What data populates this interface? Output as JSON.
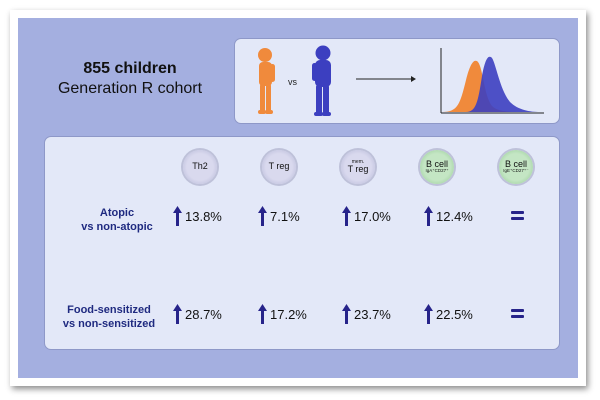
{
  "cohort": {
    "line1": "855 children",
    "line2": "Generation R cohort"
  },
  "illustration": {
    "vs_label": "vs",
    "colors": {
      "orange": "#f08a3c",
      "blue": "#3c3fc0",
      "panel": "#a4afe0",
      "box": "#e3e8f8",
      "arrow": "#26238a"
    },
    "icons": [
      "orange-child-icon",
      "blue-child-icon",
      "right-arrow-icon",
      "histogram-icon"
    ]
  },
  "cells": [
    {
      "main": "Th2",
      "style": "lav"
    },
    {
      "main": "T reg",
      "style": "lav"
    },
    {
      "sup": "mem.",
      "main": "T reg",
      "style": "lav"
    },
    {
      "main": "B cell",
      "sub": "IgA⁺CD27⁺",
      "style": "grn"
    },
    {
      "main": "B cell",
      "sub": "IgE⁺CD27⁺⁻",
      "style": "grn"
    }
  ],
  "rows": [
    {
      "label_line1": "Atopic",
      "label_line2": "vs non-atopic",
      "values": [
        "13.8%",
        "7.1%",
        "17.0%",
        "12.4%"
      ],
      "last": "="
    },
    {
      "label_line1": "Food-sensitized",
      "label_line2": "vs non-sensitized",
      "values": [
        "28.7%",
        "17.2%",
        "23.7%",
        "22.5%"
      ],
      "last": "="
    }
  ]
}
